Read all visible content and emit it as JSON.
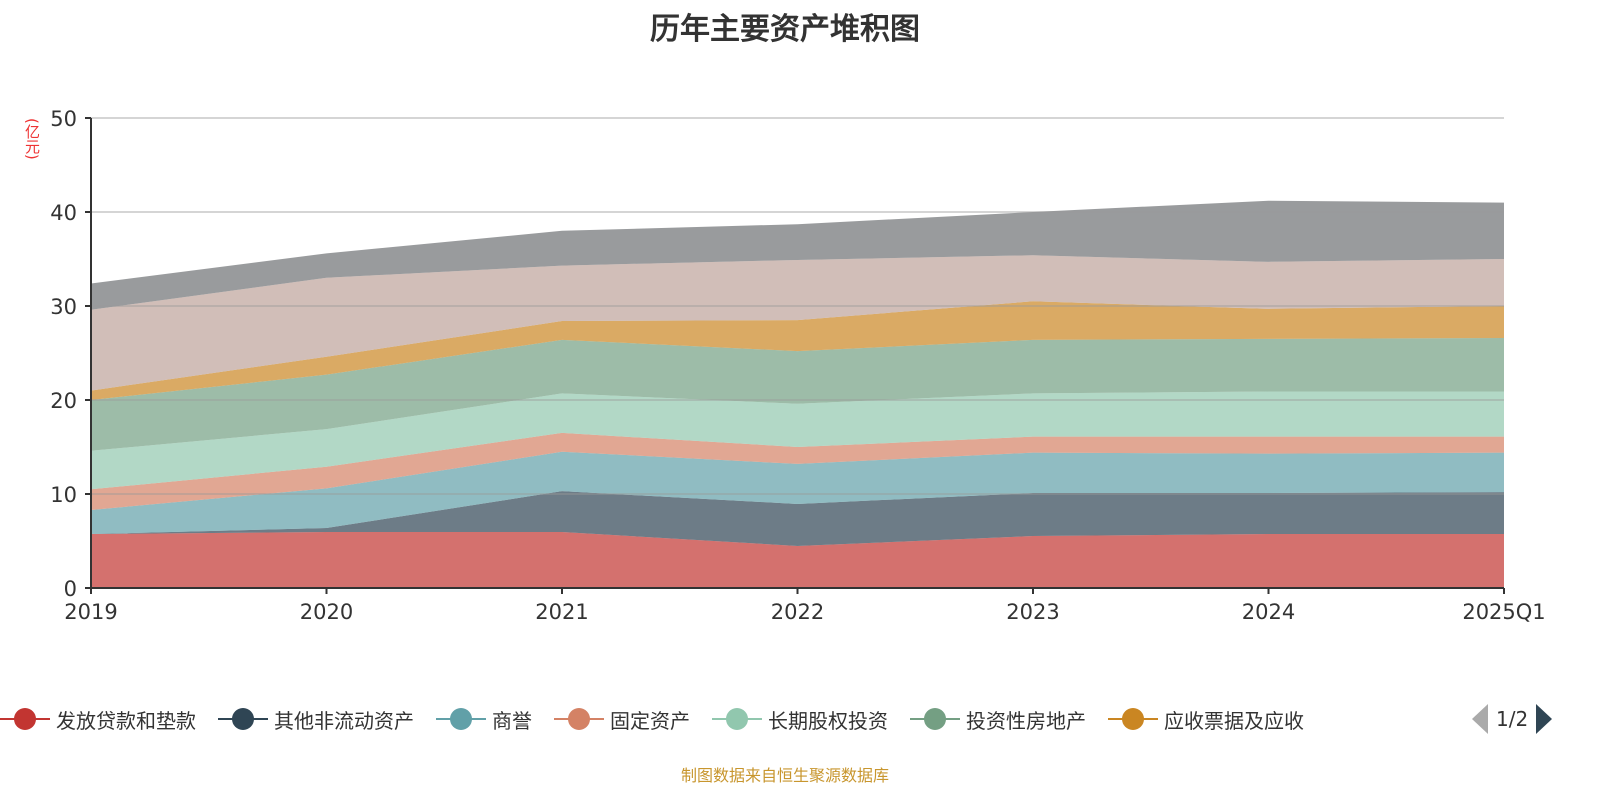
{
  "title": "历年主要资产堆积图",
  "source_note": "制图数据来自恒生聚源数据库",
  "legend_pager": {
    "page": "1/2"
  },
  "chart_data": {
    "type": "area",
    "stacked": true,
    "title": "历年主要资产堆积图",
    "ylabel": "(亿元)",
    "xlabel": "",
    "ylim": [
      0,
      50
    ],
    "yticks": [
      0,
      10,
      20,
      30,
      40,
      50
    ],
    "grid": true,
    "legend_position": "bottom",
    "categories": [
      "2019",
      "2020",
      "2021",
      "2022",
      "2023",
      "2024",
      "2025Q1"
    ],
    "series": [
      {
        "name": "发放贷款和垫款",
        "color": "#c23531",
        "values": [
          5.74,
          5.96,
          5.96,
          4.47,
          5.53,
          5.74,
          5.74
        ]
      },
      {
        "name": "其他非流动资产",
        "color": "#2f4554",
        "values": [
          0.0,
          0.42,
          4.34,
          4.47,
          4.57,
          4.36,
          4.46
        ]
      },
      {
        "name": "商誉",
        "color": "#61a0a8",
        "values": [
          2.56,
          4.22,
          4.2,
          4.26,
          4.3,
          4.2,
          4.2
        ]
      },
      {
        "name": "固定资产",
        "color": "#d48265",
        "values": [
          2.2,
          2.3,
          2.0,
          1.8,
          1.7,
          1.8,
          1.7
        ]
      },
      {
        "name": "长期股权投资",
        "color": "#91c7ae",
        "values": [
          4.1,
          4.0,
          4.2,
          4.6,
          4.6,
          4.8,
          4.8
        ]
      },
      {
        "name": "投资性房地产",
        "color": "#749f83",
        "values": [
          5.4,
          5.8,
          5.7,
          5.6,
          5.7,
          5.6,
          5.7
        ]
      },
      {
        "name": "应收票据及应收",
        "color": "#ca8622",
        "values": [
          1.0,
          1.9,
          2.0,
          3.3,
          4.1,
          3.2,
          3.4
        ]
      },
      {
        "name": "",
        "color": "#bda29a",
        "values": [
          8.6,
          8.4,
          5.9,
          6.4,
          4.9,
          5.0,
          5.0
        ]
      },
      {
        "name": "",
        "color": "#6e7074",
        "values": [
          2.8,
          2.6,
          3.7,
          3.8,
          4.6,
          6.5,
          6.0
        ]
      }
    ]
  }
}
